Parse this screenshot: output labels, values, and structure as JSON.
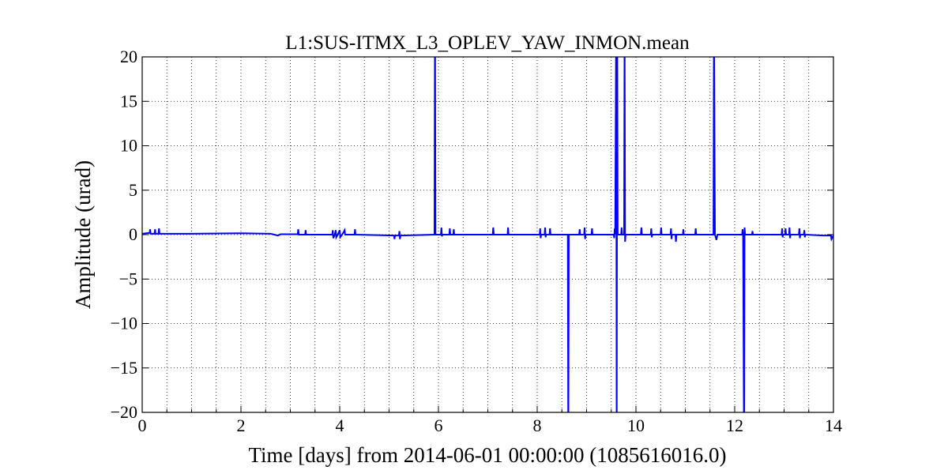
{
  "chart_data": {
    "type": "line",
    "title": "L1:SUS-ITMX_L3_OPLEV_YAW_INMON.mean",
    "xlabel": "Time [days] from 2014-06-01 00:00:00 (1085616016.0)",
    "ylabel": "Amplitude (urad)",
    "color": "#0000ff",
    "grid": true,
    "xlim": [
      0,
      14
    ],
    "ylim": [
      -20,
      20
    ],
    "xticks": [
      0,
      2,
      4,
      6,
      8,
      10,
      12,
      14
    ],
    "xminorticks": [
      0.5,
      1,
      1.5,
      2.5,
      3,
      3.5,
      4.5,
      5,
      5.5,
      6.5,
      7,
      7.5,
      8.5,
      9,
      9.5,
      10.5,
      11,
      11.5,
      12.5,
      13,
      13.5
    ],
    "yticks": [
      {
        "value": -20,
        "label": "−20"
      },
      {
        "value": -15,
        "label": "−15"
      },
      {
        "value": -10,
        "label": "−10"
      },
      {
        "value": -5,
        "label": "−5"
      },
      0,
      5,
      10,
      15,
      20
    ],
    "x": [
      0,
      0.15,
      0.16,
      0.17,
      0.25,
      0.26,
      0.27,
      0.33,
      0.34,
      0.35,
      1,
      2,
      2.6,
      2.75,
      2.8,
      3.15,
      3.16,
      3.17,
      3.3,
      3.31,
      3.32,
      3.85,
      3.86,
      3.87,
      3.9,
      3.92,
      3.93,
      3.96,
      4.0,
      4.01,
      4.05,
      4.1,
      4.11,
      4.3,
      4.31,
      4.32,
      5.1,
      5.11,
      5.12,
      5.2,
      5.21,
      5.22,
      5.23,
      5.92,
      5.93,
      5.94,
      6.05,
      6.06,
      6.07,
      6.08,
      6.22,
      6.23,
      6.24,
      6.3,
      6.31,
      6.32,
      7.1,
      7.11,
      7.12,
      7.4,
      7.41,
      7.42,
      8.05,
      8.06,
      8.07,
      8.08,
      8.15,
      8.16,
      8.17,
      8.18,
      8.25,
      8.26,
      8.27,
      8.62,
      8.63,
      8.64,
      8.85,
      8.86,
      8.87,
      8.95,
      8.96,
      8.97,
      8.98,
      9.1,
      9.11,
      9.12,
      9.55,
      9.56,
      9.57,
      9.58,
      9.6,
      9.61,
      9.62,
      9.63,
      9.7,
      9.71,
      9.72,
      9.76,
      9.77,
      9.78,
      9.79,
      10.1,
      10.11,
      10.12,
      10.3,
      10.31,
      10.32,
      10.33,
      10.5,
      10.51,
      10.52,
      10.7,
      10.71,
      10.72,
      10.73,
      10.8,
      10.81,
      10.82,
      10.95,
      10.96,
      10.97,
      11.2,
      11.21,
      11.22,
      11.57,
      11.58,
      11.6,
      11.63,
      11.65,
      12.15,
      12.16,
      12.17,
      12.19,
      12.2,
      12.21,
      12.35,
      12.36,
      12.37,
      12.95,
      12.96,
      12.97,
      12.98,
      13.02,
      13.03,
      13.04,
      13.1,
      13.11,
      13.12,
      13.13,
      13.3,
      13.31,
      13.32,
      13.33,
      13.4,
      13.41,
      13.42,
      13.43,
      13.8,
      13.95,
      13.96,
      14
    ],
    "values": [
      0.1,
      0.2,
      0.6,
      0.1,
      0.1,
      0.6,
      0.1,
      0.1,
      0.7,
      0.1,
      0.1,
      0.15,
      0.1,
      -0.1,
      0.05,
      0.05,
      0.6,
      0,
      0,
      0.5,
      0,
      0,
      0.5,
      -0.4,
      0,
      0.5,
      -0.3,
      0,
      0.5,
      -0.3,
      0,
      0.5,
      0,
      0,
      0.6,
      0,
      -0.1,
      -0.5,
      -0.1,
      -0.1,
      0.4,
      -0.5,
      -0.1,
      0,
      25,
      0,
      0,
      0.8,
      -0.2,
      0,
      0,
      0.7,
      0,
      0,
      0.6,
      0,
      0,
      0.8,
      0,
      0,
      0.8,
      0,
      0,
      0.7,
      -0.4,
      0,
      0,
      0.8,
      -0.3,
      0,
      0,
      0.7,
      0,
      0,
      -25,
      0,
      0,
      0.6,
      0,
      0,
      0.8,
      -0.5,
      0,
      0,
      0.7,
      0,
      0,
      -0.4,
      0.7,
      0,
      25,
      -25,
      25,
      0,
      0,
      0.8,
      0,
      0,
      25,
      -0.8,
      0,
      0,
      0.8,
      0,
      0,
      0.7,
      -0.3,
      0,
      0,
      0.8,
      0,
      0,
      0.7,
      -0.5,
      0,
      0,
      -0.8,
      0,
      0,
      0.6,
      0,
      0,
      0.7,
      0,
      0,
      25,
      0,
      -0.6,
      0,
      0,
      0.6,
      0,
      -25,
      0.8,
      0,
      0,
      0.4,
      0,
      0,
      0.7,
      -0.3,
      0,
      0,
      0.7,
      0,
      0,
      0.8,
      -0.4,
      0,
      0,
      0.7,
      -0.4,
      0,
      0,
      0.5,
      -0.3,
      0,
      -0.1,
      -0.1,
      -0.5,
      -0.1
    ]
  }
}
